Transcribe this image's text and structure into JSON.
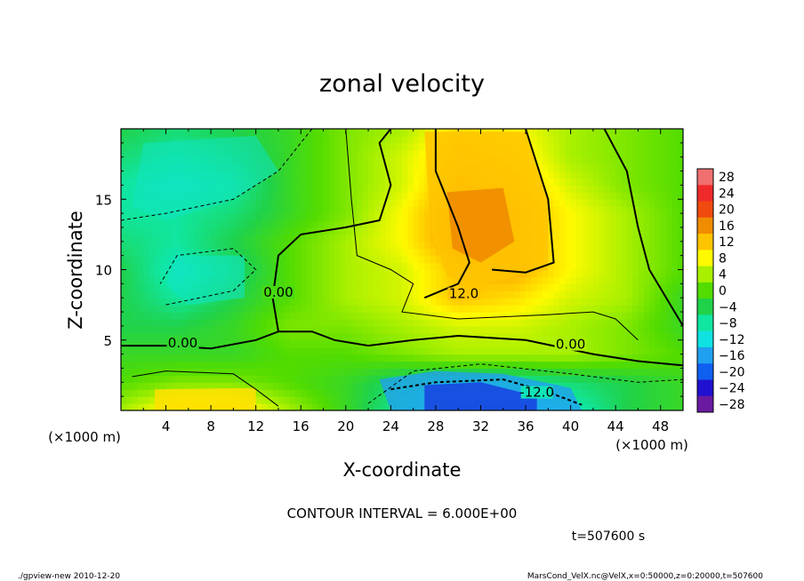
{
  "chart_data": {
    "type": "heatmap",
    "title": "zonal velocity",
    "xlabel": "X-coordinate",
    "ylabel": "Z-coordinate",
    "x_unit_note": "(×1000 m)",
    "y_unit_note": "(×1000 m)",
    "xlim": [
      0,
      50
    ],
    "ylim": [
      0,
      20
    ],
    "x_ticks": [
      4,
      8,
      12,
      16,
      20,
      24,
      28,
      32,
      36,
      40,
      44,
      48
    ],
    "y_ticks": [
      5,
      10,
      15
    ],
    "colorbar_levels": [
      28,
      24,
      20,
      16,
      12,
      8,
      4,
      0,
      -4,
      -8,
      -12,
      -16,
      -20,
      -24,
      -28
    ],
    "contour_labels": [
      {
        "text": "0.00",
        "x": 5.5,
        "y": 4.6
      },
      {
        "text": "0.00",
        "x": 14.0,
        "y": 8.2
      },
      {
        "text": "12.0",
        "x": 30.5,
        "y": 8.1
      },
      {
        "text": "0.00",
        "x": 40.0,
        "y": 4.5
      },
      {
        "text": "-12.0",
        "x": 37.0,
        "y": 1.1
      }
    ],
    "velocity_field": {
      "x": [
        0,
        5,
        10,
        15,
        20,
        25,
        30,
        35,
        40,
        45,
        50
      ],
      "z": [
        0,
        2,
        4,
        6,
        8,
        10,
        12,
        14,
        16,
        18,
        20
      ],
      "values": [
        [
          4,
          10,
          10,
          4,
          -2,
          -8,
          -13,
          -14,
          -10,
          -4,
          -2
        ],
        [
          0,
          2,
          2,
          0,
          -2,
          -6,
          -8,
          -8,
          -6,
          -4,
          -2
        ],
        [
          -2,
          -2,
          -2,
          0,
          0,
          2,
          4,
          4,
          4,
          2,
          0
        ],
        [
          -4,
          -4,
          -2,
          2,
          2,
          4,
          6,
          6,
          4,
          2,
          -2
        ],
        [
          -4,
          -8,
          -4,
          0,
          4,
          6,
          12,
          10,
          6,
          4,
          -2
        ],
        [
          -4,
          -10,
          -6,
          0,
          4,
          6,
          12,
          14,
          8,
          4,
          0
        ],
        [
          -6,
          -8,
          -4,
          0,
          4,
          8,
          16,
          14,
          8,
          4,
          0
        ],
        [
          -8,
          -8,
          -6,
          -2,
          2,
          8,
          16,
          14,
          8,
          4,
          0
        ],
        [
          -8,
          -10,
          -8,
          -2,
          2,
          6,
          14,
          12,
          6,
          2,
          0
        ],
        [
          -6,
          -8,
          -6,
          -2,
          2,
          6,
          12,
          10,
          4,
          2,
          0
        ],
        [
          -4,
          -6,
          -4,
          -2,
          2,
          4,
          10,
          8,
          4,
          2,
          0
        ]
      ]
    },
    "contour_interval_text": "CONTOUR INTERVAL = 6.000E+00",
    "time_text": "t=507600 s",
    "footer_left": "./gpview-new  2010-12-20",
    "footer_right": "MarsCond_VelX.nc@VelX,x=0:50000,z=0:20000,t=507600",
    "colors": {
      "28": "#f07070",
      "24": "#f02a2a",
      "20": "#f04a10",
      "16": "#f08c00",
      "12": "#ffc400",
      "8": "#fffa00",
      "4": "#a8f000",
      "0": "#52dc00",
      "-4": "#20d24a",
      "-8": "#10e6a0",
      "-12": "#10e2e2",
      "-16": "#20a0f0",
      "-20": "#1060f0",
      "-24": "#2010d0",
      "-28": "#6a1aa0"
    }
  }
}
